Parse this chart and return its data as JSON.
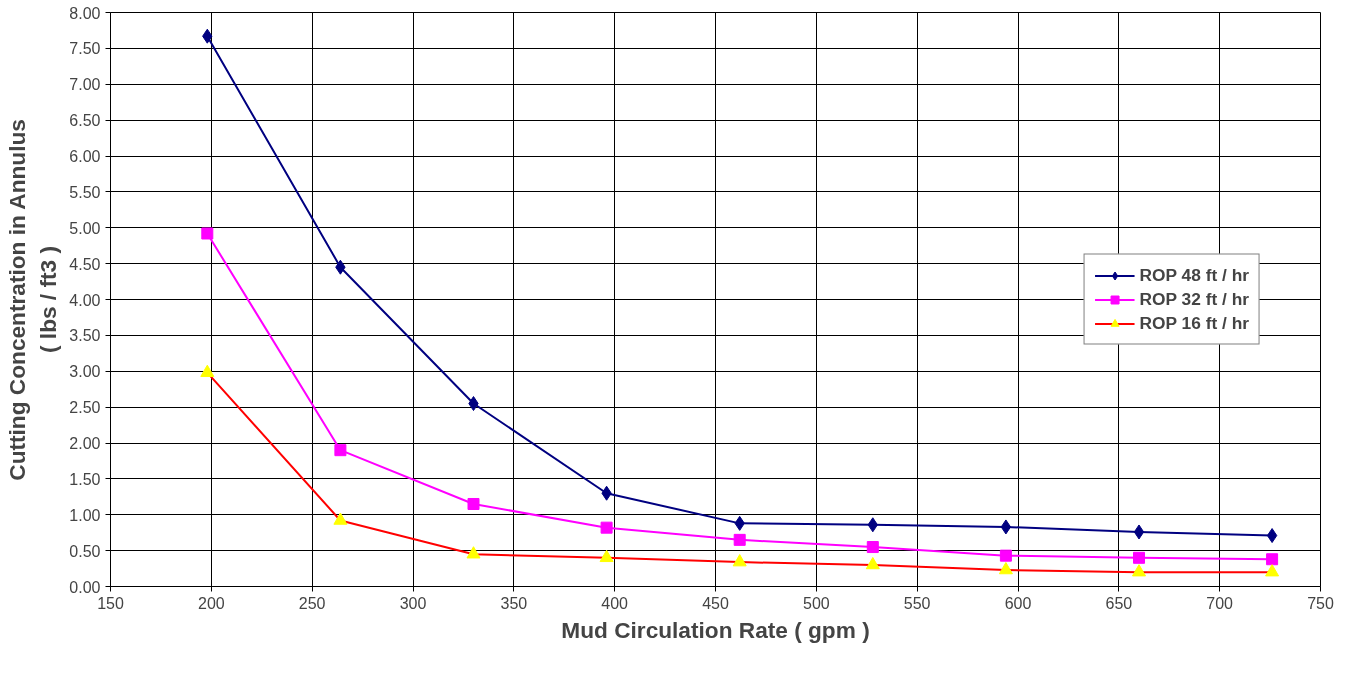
{
  "chart_data": {
    "type": "line",
    "xlabel": "Mud Circulation Rate ( gpm )",
    "ylabel": "Cutting Concentration in Annulus\n( lbs / ft3 )",
    "x": [
      198,
      264,
      330,
      396,
      462,
      528,
      594,
      660,
      726
    ],
    "series": [
      {
        "name": "ROP 48 ft / hr",
        "color": "#000080",
        "marker": "diamond",
        "values": [
          7.67,
          4.45,
          2.55,
          1.3,
          0.88,
          0.86,
          0.83,
          0.76,
          0.71
        ]
      },
      {
        "name": "ROP 32 ft / hr",
        "color": "#ff00ff",
        "marker": "square",
        "values": [
          4.92,
          1.9,
          1.15,
          0.82,
          0.65,
          0.55,
          0.43,
          0.4,
          0.38
        ]
      },
      {
        "name": "ROP 16 ft / hr",
        "color": "#ff0000",
        "colors": [
          "#ffff00",
          "#ffff00",
          "#ffff00",
          "#ffff00",
          "#ffff00",
          "#ffff00",
          "#ffff00",
          "#ffff00",
          "#ffff00"
        ],
        "marker": "triangle",
        "values": [
          2.98,
          0.92,
          0.45,
          0.4,
          0.34,
          0.3,
          0.23,
          0.2,
          0.2
        ]
      }
    ],
    "xlim": [
      150,
      750
    ],
    "xticks": [
      150,
      200,
      250,
      300,
      350,
      400,
      450,
      500,
      550,
      600,
      650,
      700,
      750
    ],
    "ylim": [
      0,
      8
    ],
    "yticks": [
      {
        "value": 0,
        "label": "0.00"
      },
      {
        "value": 0.5,
        "label": "0.50"
      },
      {
        "value": 1,
        "label": "1.00"
      },
      {
        "value": 1.5,
        "label": "1.50"
      },
      {
        "value": 2,
        "label": "2.00"
      },
      {
        "value": 2.5,
        "label": "2.50"
      },
      {
        "value": 3,
        "label": "3.00"
      },
      {
        "value": 3.5,
        "label": "3.50"
      },
      {
        "value": 4,
        "label": "4.00"
      },
      {
        "value": 4.5,
        "label": "4.50"
      },
      {
        "value": 5,
        "label": "5.00"
      },
      {
        "value": 5.5,
        "label": "5.50"
      },
      {
        "value": 6,
        "label": "6.00"
      },
      {
        "value": 6.5,
        "label": "6.50"
      },
      {
        "value": 7,
        "label": "7.00"
      },
      {
        "value": 7.5,
        "label": "7.50"
      },
      {
        "value": 8,
        "label": "8.00"
      }
    ],
    "grid": true,
    "legend": "right"
  }
}
